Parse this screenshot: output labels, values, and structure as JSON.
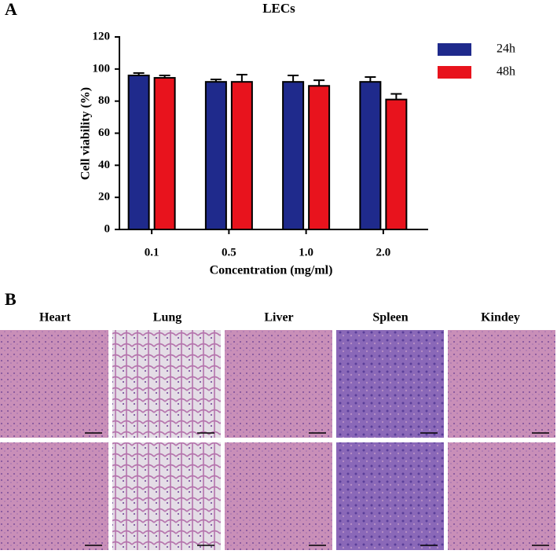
{
  "panel_labels": [
    "A",
    "B"
  ],
  "chart_data": {
    "type": "bar",
    "title": "LECs",
    "x_label": "Concentration (mg/ml)",
    "y_label": "Cell viability (%)",
    "categories": [
      "0.1",
      "0.5",
      "1.0",
      "2.0"
    ],
    "series": [
      {
        "name": "24h",
        "color": "#1f2a8c",
        "values": [
          96,
          92,
          92,
          92
        ],
        "errors": [
          1.5,
          1.5,
          4,
          3
        ]
      },
      {
        "name": "48h",
        "color": "#e8131d",
        "values": [
          94.5,
          92,
          89.5,
          81
        ],
        "errors": [
          1.5,
          4.5,
          3.5,
          3.5
        ]
      }
    ],
    "ylim": [
      0,
      120
    ],
    "yticks": [
      0,
      20,
      40,
      60,
      80,
      100,
      120
    ],
    "grid": false,
    "legend": "right"
  },
  "organs": [
    "Heart",
    "Lung",
    "Liver",
    "Spleen",
    "Kindey"
  ]
}
